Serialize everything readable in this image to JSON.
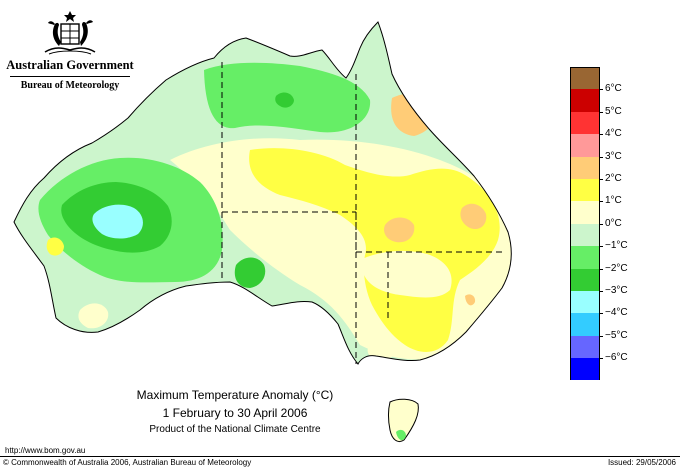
{
  "header": {
    "government": "Australian Government",
    "bureau": "Bureau of Meteorology"
  },
  "map": {
    "region": "Australia",
    "caption": {
      "title": "Maximum Temperature Anomaly (°C)",
      "dates": "1 February to 30 April 2006",
      "product": "Product of the National Climate Centre"
    }
  },
  "legend": {
    "bands": [
      {
        "color": "#996633"
      },
      {
        "color": "#cc0000"
      },
      {
        "color": "#ff3333"
      },
      {
        "color": "#ff9999"
      },
      {
        "color": "#ffcc77"
      },
      {
        "color": "#ffff44"
      },
      {
        "color": "#ffffcc"
      },
      {
        "color": "#ccf5cc"
      },
      {
        "color": "#66ee66"
      },
      {
        "color": "#33cc33"
      },
      {
        "color": "#99ffff"
      },
      {
        "color": "#33ccff"
      },
      {
        "color": "#6666ff"
      },
      {
        "color": "#0000ff"
      }
    ],
    "labels": [
      "6°C",
      "5°C",
      "4°C",
      "3°C",
      "2°C",
      "1°C",
      "0°C",
      "−1°C",
      "−2°C",
      "−3°C",
      "−4°C",
      "−5°C",
      "−6°C"
    ]
  },
  "footer": {
    "url": "http://www.bom.gov.au",
    "copyright": "© Commonwealth of Australia 2006, Australian Bureau of Meteorology",
    "issued": "Issued: 29/05/2006"
  }
}
